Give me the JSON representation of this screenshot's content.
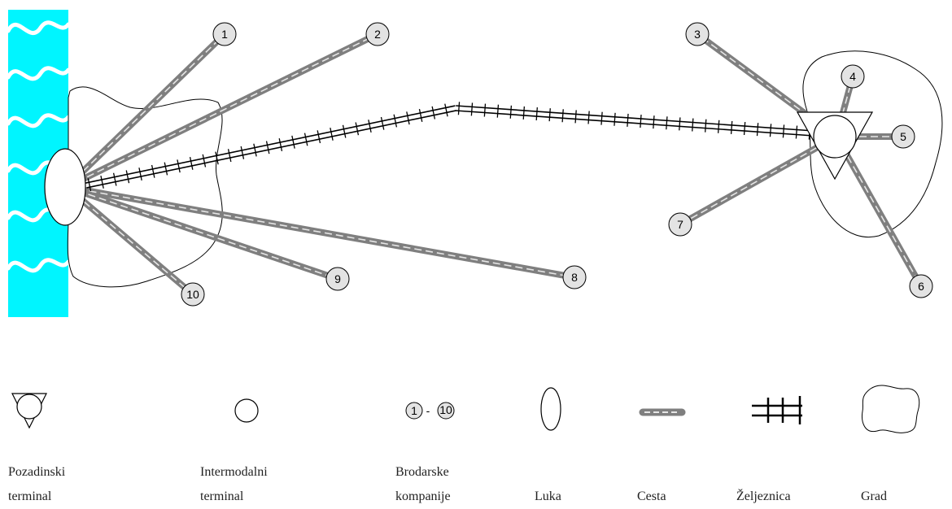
{
  "companies": [
    "1",
    "2",
    "3",
    "4",
    "5",
    "6",
    "7",
    "8",
    "9",
    "10"
  ],
  "legend": {
    "range_from": "1",
    "range_sep": "-",
    "range_to": "10",
    "items": [
      {
        "icon": "hinterland-terminal-icon",
        "line1": "Pozadinski",
        "line2": "terminal"
      },
      {
        "icon": "intermodal-terminal-icon",
        "line1": "Intermodalni",
        "line2": "terminal"
      },
      {
        "icon": "shipping-companies-icon",
        "line1": "Brodarske",
        "line2": "kompanije"
      },
      {
        "icon": "port-icon",
        "line1": "",
        "line2": "Luka"
      },
      {
        "icon": "road-icon",
        "line1": "",
        "line2": "Cesta"
      },
      {
        "icon": "railway-icon",
        "line1": "",
        "line2": "Željeznica"
      },
      {
        "icon": "city-icon",
        "line1": "",
        "line2": "Grad"
      }
    ]
  },
  "colors": {
    "sea": "#00F5FF",
    "road_outer": "#7F7F7F",
    "road_inner": "#E6E6E6",
    "node_fill": "#E3E3E3",
    "line": "#000000"
  }
}
